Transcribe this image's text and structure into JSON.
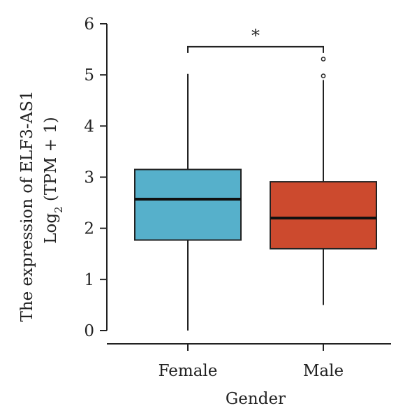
{
  "chart_data": {
    "type": "boxplot",
    "title": "",
    "xlabel": "Gender",
    "ylabel_line1": "The expression of ELF3-AS1",
    "ylabel_line2_prefix": "Log",
    "ylabel_line2_sub": "2",
    "ylabel_line2_suffix": " (TPM + 1)",
    "ylim": [
      0,
      6
    ],
    "y_ticks": [
      "0",
      "1",
      "2",
      "3",
      "4",
      "5",
      "6"
    ],
    "categories": [
      "Female",
      "Male"
    ],
    "boxes": [
      {
        "name": "Female",
        "min": 0.0,
        "q1": 1.77,
        "median": 2.57,
        "q3": 3.15,
        "max": 5.02,
        "outliers": [],
        "color": "#56B0CB"
      },
      {
        "name": "Male",
        "min": 0.5,
        "q1": 1.6,
        "median": 2.2,
        "q3": 2.91,
        "max": 4.9,
        "outliers": [
          4.98,
          5.31
        ],
        "color": "#CC4A2E"
      }
    ],
    "significance": {
      "label": "*",
      "between": [
        "Female",
        "Male"
      ],
      "y": 5.55
    },
    "grid": false
  }
}
